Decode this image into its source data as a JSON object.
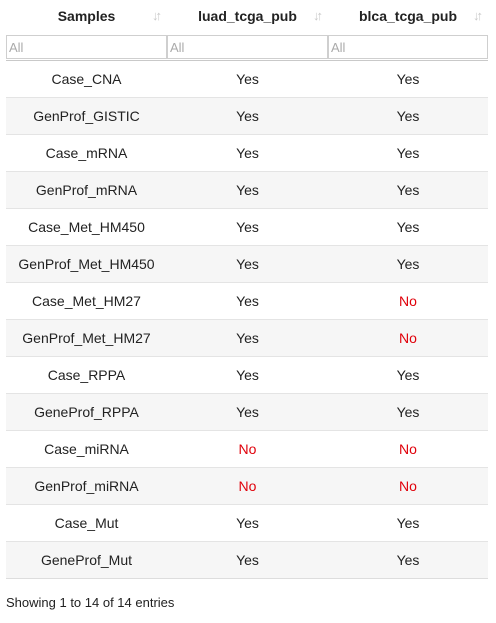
{
  "columns": [
    {
      "label": "Samples",
      "sort_icon": "sort-arrows-icon",
      "filter_placeholder": "All"
    },
    {
      "label": "luad_tcga_pub",
      "sort_icon": "sort-arrows-icon",
      "filter_placeholder": "All"
    },
    {
      "label": "blca_tcga_pub",
      "sort_icon": "sort-arrows-icon",
      "filter_placeholder": "All"
    }
  ],
  "rows": [
    [
      "Case_CNA",
      "Yes",
      "Yes"
    ],
    [
      "GenProf_GISTIC",
      "Yes",
      "Yes"
    ],
    [
      "Case_mRNA",
      "Yes",
      "Yes"
    ],
    [
      "GenProf_mRNA",
      "Yes",
      "Yes"
    ],
    [
      "Case_Met_HM450",
      "Yes",
      "Yes"
    ],
    [
      "GenProf_Met_HM450",
      "Yes",
      "Yes"
    ],
    [
      "Case_Met_HM27",
      "Yes",
      "No"
    ],
    [
      "GenProf_Met_HM27",
      "Yes",
      "No"
    ],
    [
      "Case_RPPA",
      "Yes",
      "Yes"
    ],
    [
      "GeneProf_RPPA",
      "Yes",
      "Yes"
    ],
    [
      "Case_miRNA",
      "No",
      "No"
    ],
    [
      "GenProf_miRNA",
      "No",
      "No"
    ],
    [
      "Case_Mut",
      "Yes",
      "Yes"
    ],
    [
      "GeneProf_Mut",
      "Yes",
      "Yes"
    ]
  ],
  "colors": {
    "no": "#e0000a",
    "yes": "#222222"
  },
  "info": "Showing 1 to 14 of 14 entries"
}
